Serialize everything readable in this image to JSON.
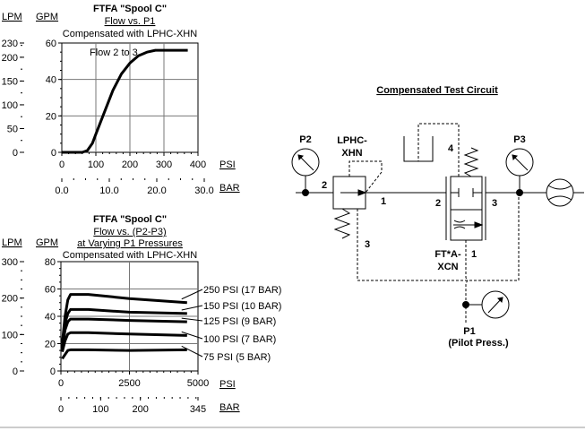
{
  "chart_data": [
    {
      "type": "line",
      "title": "FTFA \"Spool C\"",
      "subtitle": "Flow vs. P1",
      "subtitle2": "Compensated with LPHC-XHN",
      "annotation": "Flow 2 to 3",
      "ylabel": "GPM",
      "ylabel2": "LPM",
      "xlabel": "PSI",
      "xlabel2": "BAR",
      "xlim": [
        0,
        400
      ],
      "ylim": [
        0,
        60
      ],
      "x2lim": [
        0,
        30
      ],
      "y2lim": [
        0,
        230
      ],
      "xticks": [
        "0",
        "100",
        "200",
        "300",
        "400"
      ],
      "yticks": [
        "0",
        "20",
        "40",
        "60"
      ],
      "x2ticks": [
        "0.0",
        "10.0",
        "20.0",
        "30.0"
      ],
      "y2ticks": [
        "0",
        "50",
        "100",
        "150",
        "200",
        "230"
      ],
      "grid": true,
      "series": [
        {
          "x": [
            0,
            60,
            75,
            90,
            100,
            125,
            150,
            175,
            200,
            225,
            250,
            275,
            300,
            370
          ],
          "y": [
            0,
            0,
            1,
            5,
            10,
            22,
            34,
            43,
            49,
            53,
            55,
            56,
            56,
            56
          ]
        }
      ]
    },
    {
      "type": "line",
      "title": "FTFA \"Spool C\"",
      "subtitle": "Flow vs. (P2-P3)",
      "subtitle2": "at Varying P1 Pressures",
      "subtitle3": "Compensated with LPHC-XHN",
      "ylabel": "GPM",
      "ylabel2": "LPM",
      "xlabel": "PSI",
      "xlabel2": "BAR",
      "xlim": [
        0,
        5000
      ],
      "ylim": [
        0,
        80
      ],
      "x2lim": [
        0,
        345
      ],
      "y2lim": [
        0,
        300
      ],
      "xticks": [
        "0",
        "2500",
        "5000"
      ],
      "yticks": [
        "0",
        "20",
        "40",
        "60",
        "80"
      ],
      "x2ticks": [
        "0",
        "100",
        "200",
        "345"
      ],
      "y2ticks": [
        "0",
        "100",
        "200",
        "300"
      ],
      "grid": true,
      "series": [
        {
          "name": "250 PSI (17 BAR)",
          "x": [
            50,
            150,
            250,
            350,
            1000,
            2500,
            4600
          ],
          "y": [
            20,
            40,
            52,
            56,
            56,
            53,
            50
          ]
        },
        {
          "name": "150 PSI (10 BAR)",
          "x": [
            50,
            150,
            250,
            350,
            1000,
            2500,
            4600
          ],
          "y": [
            18,
            35,
            42,
            45,
            45,
            43,
            42
          ]
        },
        {
          "name": "125 PSI (9 BAR)",
          "x": [
            50,
            150,
            250,
            350,
            1000,
            2500,
            4600
          ],
          "y": [
            16,
            30,
            36,
            38,
            38,
            37,
            36
          ]
        },
        {
          "name": "100 PSI (7 BAR)",
          "x": [
            50,
            150,
            250,
            350,
            1000,
            2500,
            4600
          ],
          "y": [
            14,
            22,
            27,
            28,
            28,
            27,
            26
          ]
        },
        {
          "name": "75 PSI (5 BAR)",
          "x": [
            50,
            150,
            250,
            350,
            1000,
            2500,
            4600
          ],
          "y": [
            9,
            12,
            15,
            15.5,
            15.5,
            15,
            15.5
          ]
        }
      ]
    }
  ],
  "circuit": {
    "title": "Compensated Test Circuit",
    "p2": "P2",
    "p3": "P3",
    "p1": "P1",
    "p1_note": "(Pilot Press.)",
    "valve1_line1": "LPHC-",
    "valve1_line2": "XHN",
    "valve2_line1": "FT*A-",
    "valve2_line2": "XCN",
    "v1_port2": "2",
    "v1_port1": "1",
    "v1_port3": "3",
    "v2_port2": "2",
    "v2_port3": "3",
    "v2_port4": "4",
    "v2_port1": "1"
  }
}
